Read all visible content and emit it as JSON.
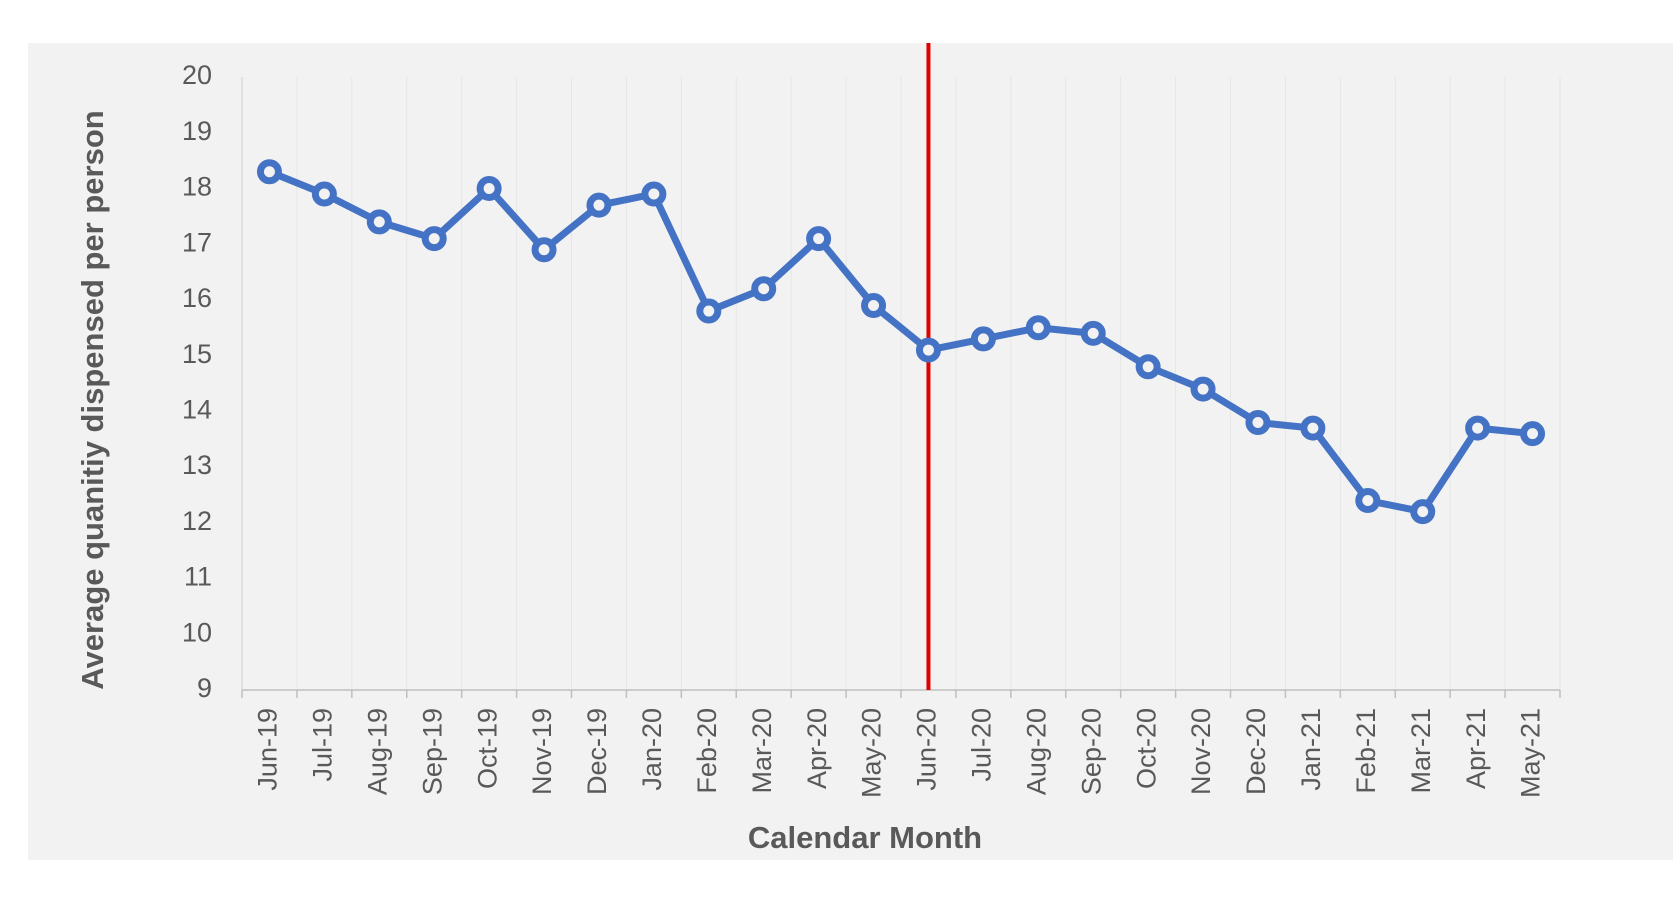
{
  "chart_data": {
    "type": "line",
    "x_label": "Calendar Month",
    "y_label": "Average quanitiy dispensed per person",
    "categories": [
      "Jun-19",
      "Jul-19",
      "Aug-19",
      "Sep-19",
      "Oct-19",
      "Nov-19",
      "Dec-19",
      "Jan-20",
      "Feb-20",
      "Mar-20",
      "Apr-20",
      "May-20",
      "Jun-20",
      "Jul-20",
      "Aug-20",
      "Sep-20",
      "Oct-20",
      "Nov-20",
      "Dec-20",
      "Jan-21",
      "Feb-21",
      "Mar-21",
      "Apr-21",
      "May-21"
    ],
    "series": [
      {
        "color": "#4472c4",
        "values": [
          18.3,
          17.9,
          17.4,
          17.1,
          18.0,
          16.9,
          17.7,
          17.9,
          15.8,
          16.2,
          17.1,
          15.9,
          15.1,
          15.3,
          15.5,
          15.4,
          14.8,
          14.4,
          13.8,
          13.7,
          12.4,
          12.2,
          13.7,
          13.6
        ]
      }
    ],
    "ylim": [
      9,
      20
    ],
    "yticks": [
      9,
      10,
      11,
      12,
      13,
      14,
      15,
      16,
      17,
      18,
      19,
      20
    ],
    "vline": {
      "x": "Jun-20",
      "color": "#e00000"
    },
    "grid": true
  }
}
